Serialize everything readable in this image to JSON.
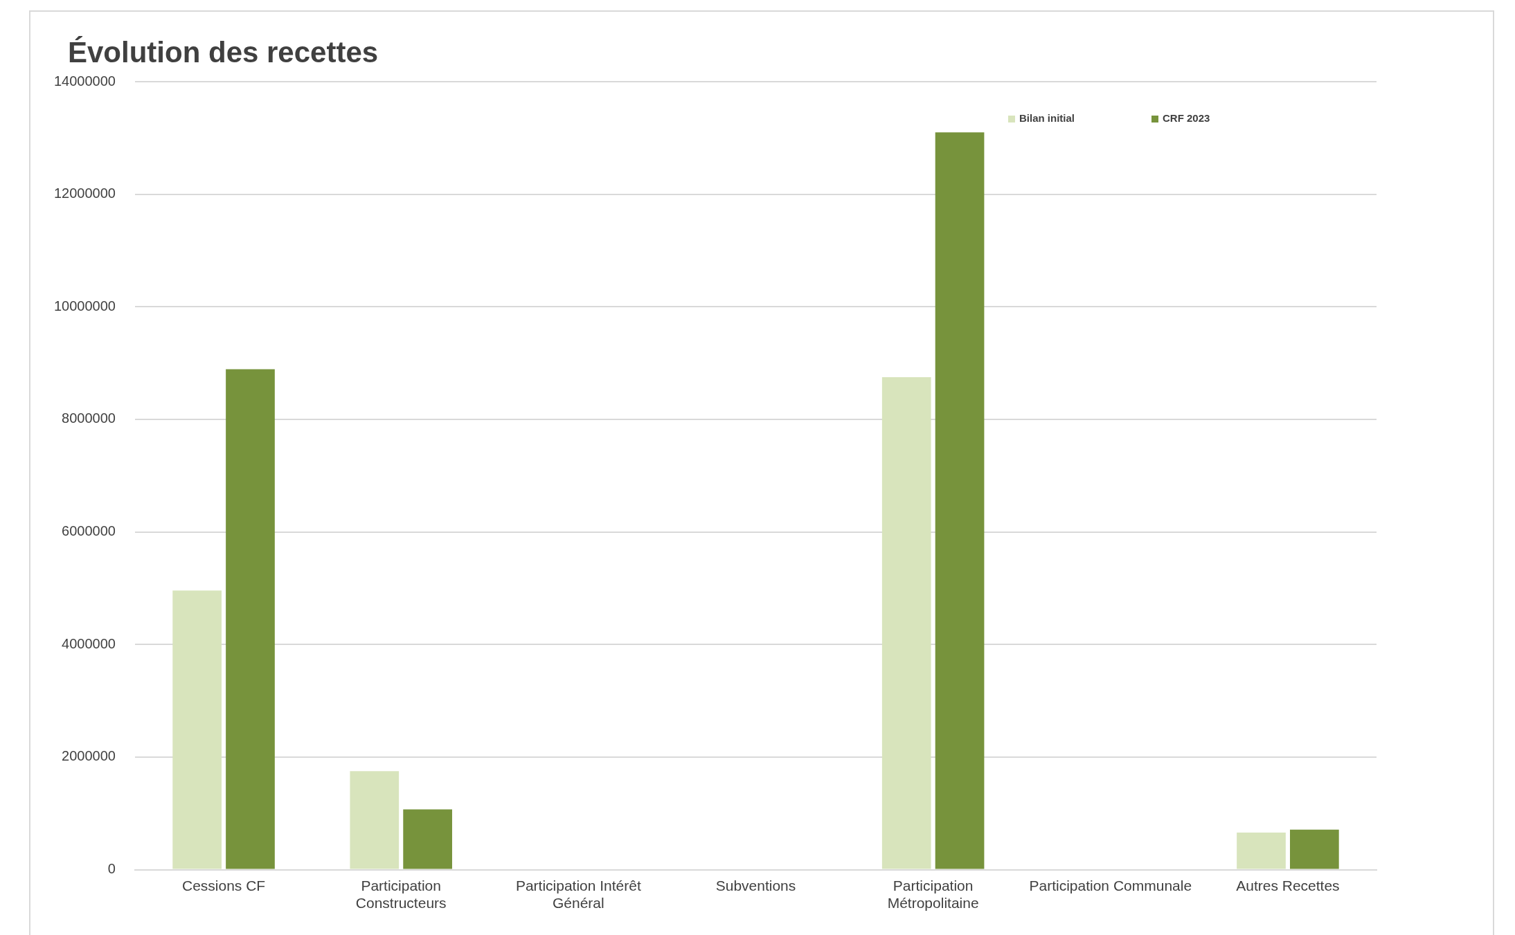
{
  "chart_data": {
    "type": "bar",
    "title": "Évolution des recettes",
    "categories": [
      "Cessions CF",
      "Participation Constructeurs",
      "Participation Intérêt Général",
      "Subventions",
      "Participation Métropolitaine",
      "Participation Communale",
      "Autres Recettes"
    ],
    "series": [
      {
        "name": "Bilan initial",
        "color": "#d8e4bc",
        "values": [
          4960000,
          1750000,
          null,
          null,
          8750000,
          null,
          660000
        ]
      },
      {
        "name": "CRF 2023",
        "color": "#77933c",
        "values": [
          8890000,
          1070000,
          null,
          null,
          13100000,
          null,
          710000
        ]
      }
    ],
    "ylim": [
      0,
      14000000
    ],
    "yticks": [
      0,
      2000000,
      4000000,
      6000000,
      8000000,
      10000000,
      12000000,
      14000000
    ],
    "grid": "y",
    "legend": "top right"
  }
}
